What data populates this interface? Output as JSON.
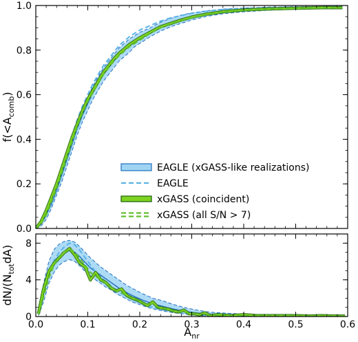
{
  "colors": {
    "eagle_band": "#9fd4f3",
    "eagle_line": "#1f6fbf",
    "eagle_dashed": "#5ab4e5",
    "xgass_fill": "#7ed321",
    "xgass_edge": "#2f6f1a",
    "xgass_dashed": "#5fbf2a"
  },
  "chart_data": [
    {
      "type": "line",
      "panel": "top",
      "ylabel_main": "f(<A",
      "ylabel_sub": "comb",
      "ylabel_close": ")",
      "xlim": [
        0,
        0.6
      ],
      "ylim": [
        0,
        1.0
      ],
      "xticks": [
        0.0,
        0.1,
        0.2,
        0.3,
        0.4,
        0.5,
        0.6
      ],
      "xtick_labels": [
        "",
        "",
        "",
        "",
        "",
        "",
        ""
      ],
      "yticks": [
        0.0,
        0.2,
        0.4,
        0.6,
        0.8,
        1.0
      ],
      "ytick_labels": [
        "0.0",
        "0.2",
        "0.4",
        "0.6",
        "0.8",
        "1.0"
      ],
      "x": [
        0,
        0.01,
        0.02,
        0.03,
        0.04,
        0.05,
        0.06,
        0.07,
        0.08,
        0.09,
        0.1,
        0.11,
        0.12,
        0.13,
        0.14,
        0.15,
        0.16,
        0.17,
        0.18,
        0.19,
        0.2,
        0.22,
        0.24,
        0.26,
        0.28,
        0.3,
        0.33,
        0.36,
        0.4,
        0.45,
        0.5,
        0.55,
        0.59
      ],
      "series": [
        {
          "name": "EAGLE (xGASS-like realizations)",
          "style": "band",
          "values": [
            0,
            0.02,
            0.06,
            0.11,
            0.17,
            0.24,
            0.31,
            0.38,
            0.45,
            0.51,
            0.56,
            0.61,
            0.65,
            0.69,
            0.72,
            0.75,
            0.78,
            0.8,
            0.82,
            0.84,
            0.855,
            0.88,
            0.905,
            0.925,
            0.94,
            0.952,
            0.965,
            0.973,
            0.98,
            0.985,
            0.988,
            0.99,
            0.99
          ],
          "lower": [
            0,
            0.01,
            0.04,
            0.09,
            0.15,
            0.21,
            0.28,
            0.35,
            0.42,
            0.48,
            0.53,
            0.58,
            0.62,
            0.66,
            0.69,
            0.72,
            0.75,
            0.77,
            0.79,
            0.815,
            0.83,
            0.86,
            0.885,
            0.905,
            0.92,
            0.935,
            0.952,
            0.963,
            0.972,
            0.979,
            0.983,
            0.986,
            0.986
          ],
          "upper": [
            0,
            0.04,
            0.09,
            0.14,
            0.2,
            0.27,
            0.34,
            0.41,
            0.48,
            0.54,
            0.59,
            0.64,
            0.68,
            0.72,
            0.75,
            0.78,
            0.81,
            0.83,
            0.85,
            0.865,
            0.88,
            0.9,
            0.925,
            0.943,
            0.957,
            0.967,
            0.977,
            0.984,
            0.989,
            0.993,
            0.995,
            0.996,
            0.996
          ]
        },
        {
          "name": "EAGLE",
          "style": "dashed",
          "values": [
            0,
            0.03,
            0.07,
            0.13,
            0.2,
            0.27,
            0.35,
            0.42,
            0.49,
            0.55,
            0.6,
            0.65,
            0.69,
            0.73,
            0.76,
            0.79,
            0.82,
            0.84,
            0.86,
            0.875,
            0.89,
            0.91,
            0.93,
            0.945,
            0.955,
            0.965,
            0.975,
            0.982,
            0.987,
            0.991,
            0.993,
            0.994,
            0.995
          ]
        },
        {
          "name": "xGASS (coincident)",
          "style": "thick",
          "values": [
            0,
            0.03,
            0.08,
            0.14,
            0.2,
            0.27,
            0.34,
            0.41,
            0.47,
            0.53,
            0.58,
            0.62,
            0.66,
            0.7,
            0.73,
            0.76,
            0.785,
            0.805,
            0.825,
            0.84,
            0.855,
            0.88,
            0.905,
            0.92,
            0.935,
            0.948,
            0.962,
            0.972,
            0.98,
            0.985,
            0.988,
            0.99,
            0.99
          ]
        },
        {
          "name": "xGASS (all S/N > 7)",
          "style": "dashed-green",
          "values": [
            0,
            0.02,
            0.06,
            0.12,
            0.18,
            0.25,
            0.32,
            0.39,
            0.46,
            0.52,
            0.57,
            0.61,
            0.65,
            0.69,
            0.72,
            0.75,
            0.775,
            0.795,
            0.815,
            0.83,
            0.845,
            0.875,
            0.9,
            0.918,
            0.932,
            0.945,
            0.96,
            0.97,
            0.978,
            0.984,
            0.987,
            0.989,
            0.99
          ]
        }
      ],
      "legend_position": "lower-right"
    },
    {
      "type": "line",
      "panel": "bottom",
      "ylabel_main": "dN/(N",
      "ylabel_sub": "tot",
      "ylabel_close": "dA)",
      "xlabel_main": "A",
      "xlabel_sub": "nr",
      "xlim": [
        0,
        0.6
      ],
      "ylim": [
        0,
        9
      ],
      "xticks": [
        0.0,
        0.1,
        0.2,
        0.3,
        0.4,
        0.5,
        0.6
      ],
      "xtick_labels": [
        "0.0",
        "0.1",
        "0.2",
        "0.3",
        "0.4",
        "0.5",
        "0.6"
      ],
      "yticks": [
        0,
        4,
        8
      ],
      "ytick_labels": [
        "0",
        "4",
        "8"
      ],
      "x": [
        0.005,
        0.015,
        0.025,
        0.035,
        0.045,
        0.055,
        0.065,
        0.075,
        0.085,
        0.095,
        0.105,
        0.115,
        0.125,
        0.135,
        0.145,
        0.155,
        0.165,
        0.175,
        0.185,
        0.195,
        0.205,
        0.215,
        0.225,
        0.235,
        0.245,
        0.255,
        0.265,
        0.275,
        0.285,
        0.295,
        0.305,
        0.315,
        0.325,
        0.335,
        0.35,
        0.375,
        0.4,
        0.425,
        0.45,
        0.475,
        0.5,
        0.525,
        0.55,
        0.575,
        0.595
      ],
      "series": [
        {
          "name": "EAGLE (xGASS-like realizations)",
          "style": "band",
          "values": [
            0.4,
            2.6,
            4.8,
            6.0,
            6.6,
            7.0,
            7.2,
            7.0,
            6.5,
            5.9,
            5.3,
            4.9,
            4.5,
            4.1,
            3.7,
            3.3,
            2.9,
            2.6,
            2.3,
            2.05,
            1.8,
            1.6,
            1.4,
            1.25,
            1.1,
            0.95,
            0.82,
            0.7,
            0.6,
            0.5,
            0.42,
            0.36,
            0.3,
            0.26,
            0.22,
            0.17,
            0.13,
            0.11,
            0.09,
            0.08,
            0.07,
            0.06,
            0.05,
            0.05,
            0.04
          ],
          "lower": [
            0.1,
            1.6,
            3.6,
            4.8,
            5.6,
            6.0,
            6.2,
            6.0,
            5.5,
            4.9,
            4.4,
            4.0,
            3.6,
            3.2,
            2.9,
            2.5,
            2.2,
            1.9,
            1.6,
            1.4,
            1.2,
            1.0,
            0.85,
            0.72,
            0.6,
            0.5,
            0.42,
            0.34,
            0.28,
            0.22,
            0.16,
            0.12,
            0.09,
            0.07,
            0.05,
            0.03,
            0.02,
            0.01,
            0.01,
            0.01,
            0.0,
            0.0,
            0.0,
            0.0,
            0.0
          ],
          "upper": [
            0.9,
            3.6,
            6.0,
            7.3,
            7.9,
            8.2,
            8.3,
            8.1,
            7.6,
            7.0,
            6.4,
            5.9,
            5.4,
            5.0,
            4.6,
            4.2,
            3.8,
            3.4,
            3.1,
            2.8,
            2.5,
            2.25,
            2.0,
            1.85,
            1.7,
            1.5,
            1.32,
            1.15,
            1.0,
            0.88,
            0.76,
            0.66,
            0.56,
            0.48,
            0.42,
            0.34,
            0.27,
            0.22,
            0.18,
            0.16,
            0.14,
            0.12,
            0.1,
            0.1,
            0.09
          ]
        },
        {
          "name": "EAGLE",
          "style": "dashed",
          "values": [
            0.3,
            2.4,
            4.6,
            6.1,
            7.0,
            7.6,
            8.0,
            7.8,
            7.2,
            6.4,
            5.6,
            4.9,
            4.3,
            3.8,
            3.3,
            2.9,
            2.5,
            2.2,
            1.9,
            1.65,
            1.4,
            1.2,
            1.02,
            0.88,
            0.75,
            0.63,
            0.53,
            0.44,
            0.37,
            0.3,
            0.24,
            0.2,
            0.16,
            0.13,
            0.1,
            0.07,
            0.05,
            0.04,
            0.03,
            0.03,
            0.02,
            0.02,
            0.02,
            0.02,
            0.02
          ]
        },
        {
          "name": "xGASS (coincident)",
          "style": "thick",
          "values": [
            0.3,
            3.0,
            4.9,
            5.8,
            6.4,
            7.0,
            7.4,
            6.7,
            5.8,
            5.4,
            4.0,
            4.8,
            4.0,
            3.7,
            3.1,
            2.8,
            3.0,
            2.3,
            2.0,
            1.8,
            1.5,
            1.2,
            1.6,
            1.0,
            0.9,
            0.8,
            0.6,
            0.5,
            0.7,
            0.3,
            0.3,
            0.2,
            0.4,
            0.1,
            0.2,
            0.1,
            0.2,
            0.1,
            0.1,
            0.1,
            0.1,
            0.05,
            0.1,
            0.05,
            0.05
          ]
        },
        {
          "name": "xGASS (all S/N > 7)",
          "style": "dashed-green",
          "values": [
            0.2,
            2.2,
            4.2,
            5.6,
            6.5,
            7.1,
            7.4,
            7.0,
            6.3,
            5.6,
            4.8,
            4.4,
            4.0,
            3.6,
            3.2,
            2.8,
            2.6,
            2.3,
            2.0,
            1.8,
            1.5,
            1.3,
            1.4,
            1.0,
            0.9,
            0.75,
            0.6,
            0.5,
            0.55,
            0.3,
            0.3,
            0.22,
            0.3,
            0.12,
            0.15,
            0.1,
            0.12,
            0.08,
            0.08,
            0.07,
            0.06,
            0.05,
            0.06,
            0.04,
            0.04
          ]
        }
      ]
    }
  ],
  "legend": {
    "items": [
      {
        "label": "EAGLE (xGASS-like realizations)",
        "style": "band"
      },
      {
        "label": "EAGLE",
        "style": "dashed"
      },
      {
        "label": "xGASS (coincident)",
        "style": "thick"
      },
      {
        "label": "xGASS (all S/N > 7)",
        "style": "dashed-green"
      }
    ]
  }
}
